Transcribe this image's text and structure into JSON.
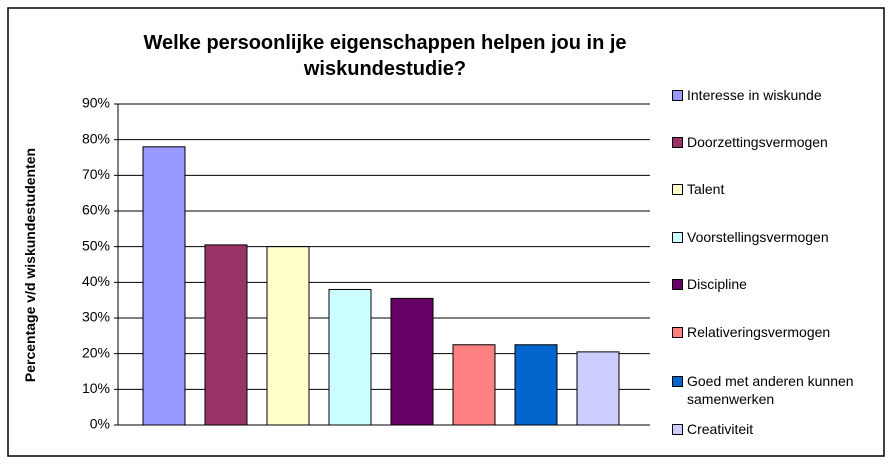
{
  "chart_data": {
    "type": "bar",
    "title": "Welke persoonlijke eigenschappen helpen jou in je wiskundestudie?",
    "y_label": "Percentage v/d wiskundestudenten",
    "ylim": [
      0,
      90
    ],
    "yticks": [
      {
        "value": 0,
        "label": "0%"
      },
      {
        "value": 10,
        "label": "10%"
      },
      {
        "value": 20,
        "label": "20%"
      },
      {
        "value": 30,
        "label": "30%"
      },
      {
        "value": 40,
        "label": "40%"
      },
      {
        "value": 50,
        "label": "50%"
      },
      {
        "value": 60,
        "label": "60%"
      },
      {
        "value": 70,
        "label": "70%"
      },
      {
        "value": 80,
        "label": "80%"
      },
      {
        "value": 90,
        "label": "90%"
      }
    ],
    "grid": true,
    "legend": "right",
    "series": [
      {
        "name": "Interesse in wiskunde",
        "color": "#9999ff",
        "values": [
          78
        ]
      },
      {
        "name": "Doorzettingsvermogen",
        "color": "#993366",
        "values": [
          50.5
        ]
      },
      {
        "name": "Talent",
        "color": "#ffffcc",
        "values": [
          50
        ]
      },
      {
        "name": "Voorstellingsvermogen",
        "color": "#ccffff",
        "values": [
          38
        ]
      },
      {
        "name": "Discipline",
        "color": "#660066",
        "values": [
          35.5
        ]
      },
      {
        "name": "Relativeringsvermogen",
        "color": "#ff8080",
        "values": [
          22.5
        ]
      },
      {
        "name": "Goed met anderen kunnen samenwerken",
        "color": "#0066cc",
        "values": [
          22.5
        ]
      },
      {
        "name": "Creativiteit",
        "color": "#ccccff",
        "values": [
          20.5
        ]
      }
    ]
  }
}
